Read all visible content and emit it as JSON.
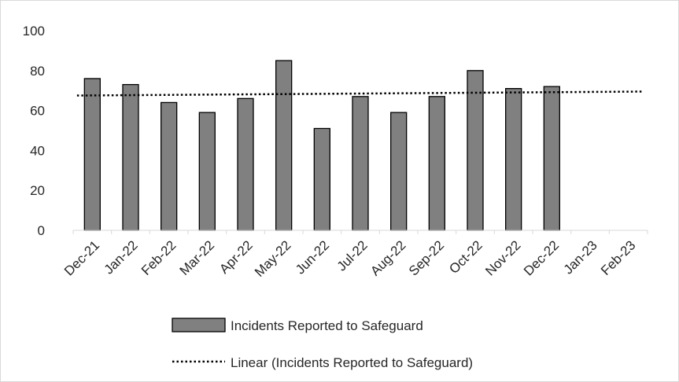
{
  "chart_data": {
    "type": "bar",
    "categories": [
      "Dec-21",
      "Jan-22",
      "Feb-22",
      "Mar-22",
      "Apr-22",
      "May-22",
      "Jun-22",
      "Jul-22",
      "Aug-22",
      "Sep-22",
      "Oct-22",
      "Nov-22",
      "Dec-22",
      "Jan-23",
      "Feb-23"
    ],
    "series": [
      {
        "name": "Incidents Reported to Safeguard",
        "values": [
          76,
          73,
          64,
          59,
          66,
          85,
          51,
          67,
          59,
          67,
          80,
          71,
          72,
          null,
          null
        ],
        "color": "#808080"
      }
    ],
    "trendline": {
      "name": "Linear (Incidents Reported to Safeguard)",
      "type": "linear",
      "start_value": 67.5,
      "end_value": 69.5,
      "style": "dotted",
      "color": "#000000"
    },
    "y_ticks": [
      0,
      20,
      40,
      60,
      80,
      100
    ],
    "ylim": [
      0,
      100
    ],
    "grid": false,
    "legend": "bottom",
    "title": "",
    "xlabel": "",
    "ylabel": ""
  }
}
